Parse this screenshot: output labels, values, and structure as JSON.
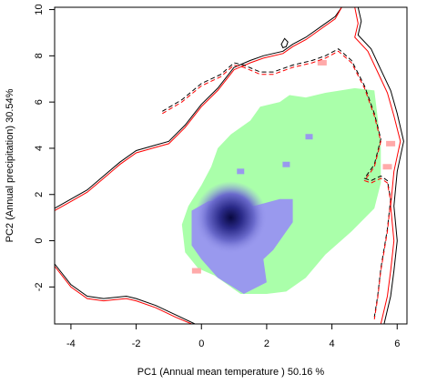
{
  "chart_data": {
    "type": "contour-density",
    "xlabel": "PC1 (Annual mean temperature ) 50.16 %",
    "ylabel": "PC2 (Annual precipitation) 30.54%",
    "xlim": [
      -4.5,
      6.3
    ],
    "ylim": [
      -3.6,
      10.1
    ],
    "xticks": [
      -4,
      -2,
      0,
      2,
      4,
      6
    ],
    "yticks": [
      -2,
      0,
      2,
      4,
      6,
      8,
      10
    ],
    "grid": false,
    "colors": {
      "overlap": "#aaffaa",
      "only_one": "#ffaaaa",
      "density": "#9999ee",
      "density_core": "#0a0a55",
      "envelope_a": "#000000",
      "envelope_b": "#ff0000"
    },
    "green_region": [
      [
        0.4,
        -1.5
      ],
      [
        1.2,
        -2.3
      ],
      [
        2.0,
        -2.3
      ],
      [
        2.6,
        -2.2
      ],
      [
        3.2,
        -1.6
      ],
      [
        3.8,
        -0.6
      ],
      [
        4.6,
        0.4
      ],
      [
        5.3,
        1.4
      ],
      [
        5.5,
        2.5
      ],
      [
        5.5,
        4.2
      ],
      [
        5.3,
        6.5
      ],
      [
        4.7,
        6.6
      ],
      [
        3.8,
        6.4
      ],
      [
        3.2,
        6.2
      ],
      [
        2.7,
        6.3
      ],
      [
        2.4,
        6.0
      ],
      [
        1.8,
        5.8
      ],
      [
        1.5,
        5.2
      ],
      [
        0.9,
        4.6
      ],
      [
        0.5,
        4.0
      ],
      [
        0.3,
        3.2
      ],
      [
        0.0,
        2.4
      ],
      [
        -0.4,
        1.5
      ],
      [
        -0.6,
        0.7
      ],
      [
        -0.5,
        -0.5
      ],
      [
        -0.1,
        -1.2
      ]
    ],
    "blue_region": [
      [
        -0.3,
        1.3
      ],
      [
        0.2,
        1.7
      ],
      [
        0.9,
        1.8
      ],
      [
        1.6,
        1.5
      ],
      [
        2.4,
        1.8
      ],
      [
        2.8,
        1.8
      ],
      [
        2.8,
        0.8
      ],
      [
        2.2,
        -0.4
      ],
      [
        1.9,
        -0.8
      ],
      [
        2.0,
        -1.8
      ],
      [
        1.3,
        -2.3
      ],
      [
        0.5,
        -1.6
      ],
      [
        0.0,
        -0.8
      ],
      [
        -0.3,
        -0.2
      ]
    ],
    "density_peak": [
      0.9,
      1.0
    ],
    "blue_specks": [
      [
        1.2,
        3.0
      ],
      [
        3.3,
        4.5
      ],
      [
        2.6,
        3.3
      ]
    ],
    "pink_specks": [
      [
        3.7,
        7.7
      ],
      [
        -0.15,
        -1.3
      ],
      [
        5.7,
        3.2
      ],
      [
        5.8,
        4.2
      ]
    ],
    "envelope_solid_black": [
      [
        -4.5,
        1.4
      ],
      [
        -4.0,
        1.8
      ],
      [
        -3.5,
        2.2
      ],
      [
        -3.0,
        2.8
      ],
      [
        -2.5,
        3.4
      ],
      [
        -2.0,
        3.9
      ],
      [
        -1.5,
        4.1
      ],
      [
        -1.0,
        4.3
      ],
      [
        -0.5,
        5.0
      ],
      [
        0.0,
        5.9
      ],
      [
        0.5,
        6.6
      ],
      [
        1.0,
        7.5
      ],
      [
        1.5,
        7.8
      ],
      [
        1.9,
        8.0
      ],
      [
        2.5,
        8.2
      ],
      [
        2.8,
        8.5
      ],
      [
        3.2,
        8.8
      ],
      [
        3.7,
        9.3
      ],
      [
        4.1,
        9.7
      ],
      [
        4.3,
        10.1
      ],
      [
        4.8,
        10.1
      ],
      [
        4.9,
        9.5
      ],
      [
        4.8,
        8.9
      ],
      [
        5.2,
        8.3
      ],
      [
        5.5,
        7.4
      ],
      [
        5.8,
        6.5
      ],
      [
        6.0,
        5.5
      ],
      [
        6.2,
        4.3
      ],
      [
        6.0,
        3.0
      ],
      [
        5.9,
        1.5
      ],
      [
        6.0,
        0.0
      ],
      [
        5.9,
        -1.3
      ],
      [
        5.8,
        -2.4
      ],
      [
        5.6,
        -3.6
      ]
    ],
    "envelope_solid_red": [
      [
        -4.5,
        1.3
      ],
      [
        -4.0,
        1.7
      ],
      [
        -3.5,
        2.1
      ],
      [
        -3.0,
        2.7
      ],
      [
        -2.5,
        3.3
      ],
      [
        -2.0,
        3.8
      ],
      [
        -1.5,
        4.0
      ],
      [
        -1.0,
        4.2
      ],
      [
        -0.5,
        4.9
      ],
      [
        0.0,
        5.8
      ],
      [
        0.5,
        6.5
      ],
      [
        1.0,
        7.4
      ],
      [
        1.5,
        7.7
      ],
      [
        1.9,
        7.9
      ],
      [
        2.5,
        8.1
      ],
      [
        2.8,
        8.4
      ],
      [
        3.2,
        8.7
      ],
      [
        3.7,
        9.2
      ],
      [
        4.1,
        9.6
      ],
      [
        4.3,
        10.1
      ],
      [
        4.7,
        10.1
      ],
      [
        4.8,
        9.4
      ],
      [
        4.7,
        8.8
      ],
      [
        5.1,
        8.2
      ],
      [
        5.4,
        7.3
      ],
      [
        5.7,
        6.4
      ],
      [
        5.9,
        5.4
      ],
      [
        6.1,
        4.3
      ],
      [
        5.9,
        3.0
      ],
      [
        5.8,
        1.5
      ],
      [
        5.9,
        0.0
      ],
      [
        5.8,
        -1.3
      ],
      [
        5.7,
        -2.4
      ],
      [
        5.5,
        -3.6
      ]
    ],
    "envelope_dashed_black": [
      [
        -1.2,
        5.6
      ],
      [
        -0.6,
        6.1
      ],
      [
        0.0,
        6.8
      ],
      [
        0.6,
        7.2
      ],
      [
        1.0,
        7.7
      ],
      [
        1.3,
        7.6
      ],
      [
        1.8,
        7.3
      ],
      [
        2.2,
        7.3
      ],
      [
        2.8,
        7.6
      ],
      [
        3.4,
        7.8
      ],
      [
        3.8,
        8.0
      ],
      [
        4.2,
        8.3
      ],
      [
        4.6,
        7.8
      ],
      [
        5.0,
        6.7
      ],
      [
        5.3,
        5.5
      ],
      [
        5.5,
        4.4
      ],
      [
        5.3,
        3.3
      ],
      [
        5.0,
        2.7
      ],
      [
        5.2,
        2.6
      ],
      [
        5.5,
        2.8
      ],
      [
        5.7,
        2.6
      ],
      [
        5.8,
        1.8
      ],
      [
        5.7,
        0.5
      ],
      [
        5.5,
        -1.2
      ],
      [
        5.4,
        -2.4
      ],
      [
        5.3,
        -3.3
      ]
    ],
    "envelope_dashed_red": [
      [
        -1.2,
        5.5
      ],
      [
        -0.6,
        6.0
      ],
      [
        0.0,
        6.7
      ],
      [
        0.6,
        7.1
      ],
      [
        1.0,
        7.6
      ],
      [
        1.3,
        7.5
      ],
      [
        1.8,
        7.2
      ],
      [
        2.2,
        7.2
      ],
      [
        2.8,
        7.5
      ],
      [
        3.4,
        7.7
      ],
      [
        3.8,
        7.9
      ],
      [
        4.2,
        8.2
      ],
      [
        4.6,
        7.7
      ],
      [
        5.0,
        6.6
      ],
      [
        5.3,
        5.4
      ],
      [
        5.5,
        4.3
      ],
      [
        5.3,
        3.2
      ],
      [
        5.0,
        2.6
      ],
      [
        5.2,
        2.5
      ],
      [
        5.5,
        2.7
      ],
      [
        5.7,
        2.5
      ],
      [
        5.8,
        1.7
      ],
      [
        5.7,
        0.4
      ],
      [
        5.5,
        -1.3
      ],
      [
        5.4,
        -2.5
      ],
      [
        5.3,
        -3.4
      ]
    ],
    "envelope_bottom_black": [
      [
        -4.5,
        -1.0
      ],
      [
        -4.0,
        -1.9
      ],
      [
        -3.5,
        -2.4
      ],
      [
        -3.0,
        -2.5
      ],
      [
        -2.3,
        -2.4
      ],
      [
        -2.0,
        -2.5
      ],
      [
        -1.4,
        -2.8
      ],
      [
        -0.8,
        -3.2
      ],
      [
        -0.2,
        -3.6
      ]
    ],
    "envelope_bottom_red": [
      [
        -4.5,
        -1.1
      ],
      [
        -4.0,
        -2.0
      ],
      [
        -3.5,
        -2.5
      ],
      [
        -3.0,
        -2.6
      ],
      [
        -2.3,
        -2.5
      ],
      [
        -2.0,
        -2.6
      ],
      [
        -1.4,
        -2.9
      ],
      [
        -0.8,
        -3.3
      ],
      [
        -0.3,
        -3.6
      ]
    ],
    "small_loop": [
      [
        2.45,
        8.5
      ],
      [
        2.55,
        8.75
      ],
      [
        2.65,
        8.6
      ],
      [
        2.6,
        8.4
      ],
      [
        2.5,
        8.35
      ]
    ]
  }
}
